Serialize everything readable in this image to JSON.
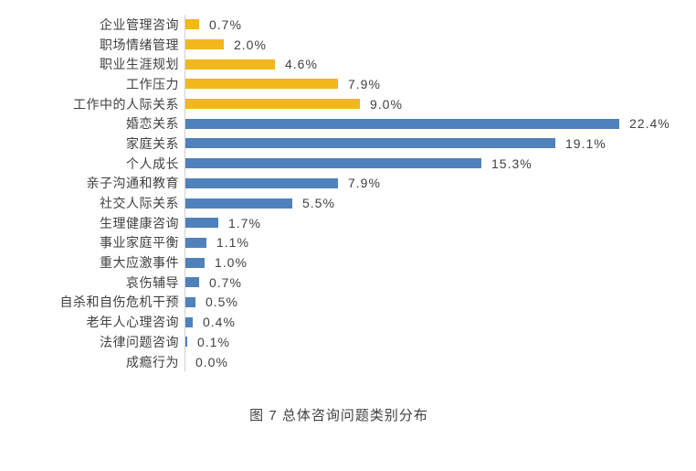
{
  "caption": "图 7 总体咨询问题类别分布",
  "chart_data": {
    "type": "bar",
    "orientation": "horizontal",
    "title": "图 7 总体咨询问题类别分布",
    "xlabel": "",
    "ylabel": "",
    "legend": "none",
    "grid": false,
    "value_unit": "%",
    "xlim": [
      0,
      26
    ],
    "palette": {
      "gold": "#F2B71C",
      "blue": "#4F81BD"
    },
    "categories": [
      "企业管理咨询",
      "职场情绪管理",
      "职业生涯规划",
      "工作压力",
      "工作中的人际关系",
      "婚恋关系",
      "家庭关系",
      "个人成长",
      "亲子沟通和教育",
      "社交人际关系",
      "生理健康咨询",
      "事业家庭平衡",
      "重大应激事件",
      "哀伤辅导",
      "自杀和自伤危机干预",
      "老年人心理咨询",
      "法律问题咨询",
      "成瘾行为"
    ],
    "values": [
      0.7,
      2.0,
      4.6,
      7.9,
      9.0,
      22.4,
      19.1,
      15.3,
      7.9,
      5.5,
      1.7,
      1.1,
      1.0,
      0.7,
      0.5,
      0.4,
      0.1,
      0.0
    ],
    "items": [
      {
        "category": "企业管理咨询",
        "value": 0.7,
        "display": "0.7%",
        "color": "gold"
      },
      {
        "category": "职场情绪管理",
        "value": 2.0,
        "display": "2.0%",
        "color": "gold"
      },
      {
        "category": "职业生涯规划",
        "value": 4.6,
        "display": "4.6%",
        "color": "gold"
      },
      {
        "category": "工作压力",
        "value": 7.9,
        "display": "7.9%",
        "color": "gold"
      },
      {
        "category": "工作中的人际关系",
        "value": 9.0,
        "display": "9.0%",
        "color": "gold"
      },
      {
        "category": "婚恋关系",
        "value": 22.4,
        "display": "22.4%",
        "color": "blue"
      },
      {
        "category": "家庭关系",
        "value": 19.1,
        "display": "19.1%",
        "color": "blue"
      },
      {
        "category": "个人成长",
        "value": 15.3,
        "display": "15.3%",
        "color": "blue"
      },
      {
        "category": "亲子沟通和教育",
        "value": 7.9,
        "display": "7.9%",
        "color": "blue"
      },
      {
        "category": "社交人际关系",
        "value": 5.5,
        "display": "5.5%",
        "color": "blue"
      },
      {
        "category": "生理健康咨询",
        "value": 1.7,
        "display": "1.7%",
        "color": "blue"
      },
      {
        "category": "事业家庭平衡",
        "value": 1.1,
        "display": "1.1%",
        "color": "blue"
      },
      {
        "category": "重大应激事件",
        "value": 1.0,
        "display": "1.0%",
        "color": "blue"
      },
      {
        "category": "哀伤辅导",
        "value": 0.7,
        "display": "0.7%",
        "color": "blue"
      },
      {
        "category": "自杀和自伤危机干预",
        "value": 0.5,
        "display": "0.5%",
        "color": "blue"
      },
      {
        "category": "老年人心理咨询",
        "value": 0.4,
        "display": "0.4%",
        "color": "blue"
      },
      {
        "category": "法律问题咨询",
        "value": 0.1,
        "display": "0.1%",
        "color": "blue"
      },
      {
        "category": "成瘾行为",
        "value": 0.0,
        "display": "0.0%",
        "color": "blue"
      }
    ]
  }
}
